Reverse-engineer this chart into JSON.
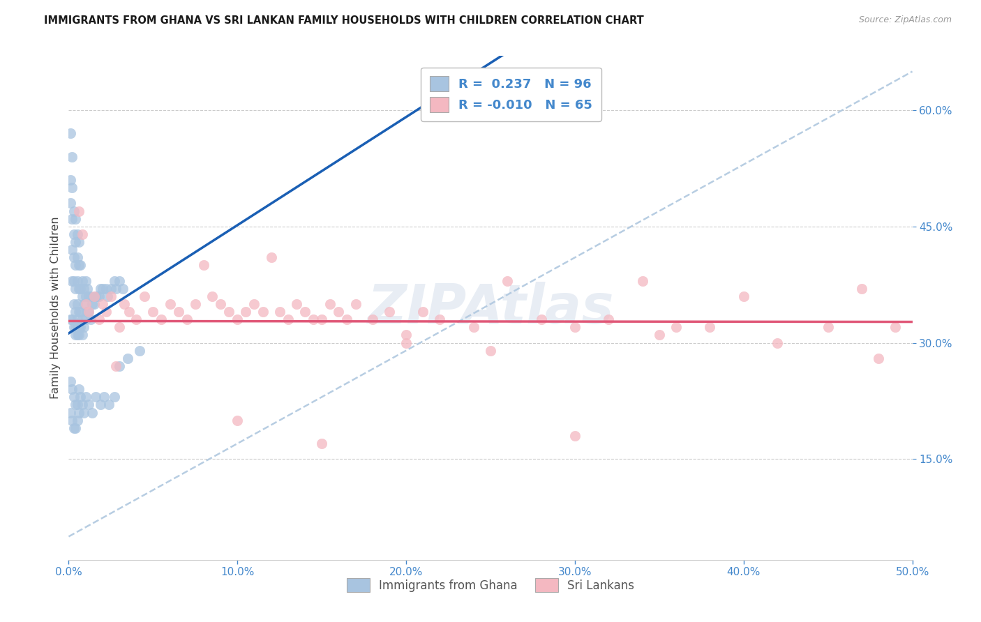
{
  "title": "IMMIGRANTS FROM GHANA VS SRI LANKAN FAMILY HOUSEHOLDS WITH CHILDREN CORRELATION CHART",
  "source": "Source: ZipAtlas.com",
  "ylabel": "Family Households with Children",
  "xmin": 0.0,
  "xmax": 0.5,
  "ymin": 0.02,
  "ymax": 0.67,
  "ghana_R": 0.237,
  "ghana_N": 96,
  "srilanka_R": -0.01,
  "srilanka_N": 65,
  "ghana_color": "#a8c4e0",
  "srilanka_color": "#f4b8c1",
  "ghana_trend_color": "#1a5fb4",
  "ghana_dashed_color": "#b0c8df",
  "srilanka_trend_color": "#e05878",
  "watermark": "ZIPAtlas",
  "legend_label1": "Immigrants from Ghana",
  "legend_label2": "Sri Lankans",
  "tick_color": "#4488cc",
  "grid_color": "#cccccc",
  "ytick_vals": [
    0.15,
    0.3,
    0.45,
    0.6
  ],
  "ytick_labels": [
    "15.0%",
    "30.0%",
    "45.0%",
    "60.0%"
  ],
  "xtick_vals": [
    0.0,
    0.1,
    0.2,
    0.3,
    0.4,
    0.5
  ],
  "xtick_labels": [
    "0.0%",
    "10.0%",
    "20.0%",
    "30.0%",
    "40.0%",
    "50.0%"
  ],
  "ghana_x": [
    0.001,
    0.001,
    0.001,
    0.001,
    0.002,
    0.002,
    0.002,
    0.002,
    0.002,
    0.002,
    0.003,
    0.003,
    0.003,
    0.003,
    0.003,
    0.003,
    0.004,
    0.004,
    0.004,
    0.004,
    0.004,
    0.004,
    0.004,
    0.005,
    0.005,
    0.005,
    0.005,
    0.005,
    0.005,
    0.005,
    0.006,
    0.006,
    0.006,
    0.006,
    0.006,
    0.006,
    0.007,
    0.007,
    0.007,
    0.007,
    0.008,
    0.008,
    0.008,
    0.008,
    0.009,
    0.009,
    0.009,
    0.01,
    0.01,
    0.01,
    0.011,
    0.011,
    0.012,
    0.012,
    0.013,
    0.013,
    0.014,
    0.015,
    0.016,
    0.017,
    0.018,
    0.019,
    0.02,
    0.022,
    0.023,
    0.025,
    0.027,
    0.028,
    0.03,
    0.032,
    0.001,
    0.001,
    0.002,
    0.002,
    0.003,
    0.003,
    0.004,
    0.004,
    0.005,
    0.005,
    0.006,
    0.006,
    0.007,
    0.008,
    0.009,
    0.01,
    0.012,
    0.014,
    0.016,
    0.019,
    0.021,
    0.024,
    0.027,
    0.03,
    0.035,
    0.042
  ],
  "ghana_y": [
    0.57,
    0.51,
    0.48,
    0.33,
    0.54,
    0.5,
    0.46,
    0.42,
    0.38,
    0.33,
    0.47,
    0.44,
    0.41,
    0.38,
    0.35,
    0.32,
    0.46,
    0.43,
    0.4,
    0.37,
    0.34,
    0.31,
    0.32,
    0.44,
    0.41,
    0.38,
    0.35,
    0.33,
    0.32,
    0.31,
    0.43,
    0.4,
    0.37,
    0.34,
    0.32,
    0.31,
    0.4,
    0.37,
    0.34,
    0.32,
    0.38,
    0.36,
    0.33,
    0.31,
    0.37,
    0.35,
    0.32,
    0.38,
    0.36,
    0.33,
    0.37,
    0.34,
    0.36,
    0.34,
    0.36,
    0.33,
    0.35,
    0.35,
    0.36,
    0.36,
    0.36,
    0.37,
    0.37,
    0.37,
    0.36,
    0.37,
    0.38,
    0.37,
    0.38,
    0.37,
    0.25,
    0.21,
    0.24,
    0.2,
    0.23,
    0.19,
    0.22,
    0.19,
    0.22,
    0.2,
    0.24,
    0.21,
    0.23,
    0.22,
    0.21,
    0.23,
    0.22,
    0.21,
    0.23,
    0.22,
    0.23,
    0.22,
    0.23,
    0.27,
    0.28,
    0.29
  ],
  "srilanka_x": [
    0.006,
    0.008,
    0.01,
    0.012,
    0.015,
    0.018,
    0.02,
    0.022,
    0.025,
    0.028,
    0.03,
    0.033,
    0.036,
    0.04,
    0.045,
    0.05,
    0.055,
    0.06,
    0.065,
    0.07,
    0.075,
    0.08,
    0.085,
    0.09,
    0.095,
    0.1,
    0.105,
    0.11,
    0.115,
    0.12,
    0.125,
    0.13,
    0.135,
    0.14,
    0.145,
    0.15,
    0.155,
    0.16,
    0.165,
    0.17,
    0.18,
    0.19,
    0.2,
    0.21,
    0.22,
    0.24,
    0.26,
    0.28,
    0.3,
    0.32,
    0.34,
    0.36,
    0.38,
    0.4,
    0.42,
    0.45,
    0.47,
    0.49,
    0.2,
    0.3,
    0.1,
    0.15,
    0.25,
    0.35,
    0.48
  ],
  "srilanka_y": [
    0.47,
    0.44,
    0.35,
    0.34,
    0.36,
    0.33,
    0.35,
    0.34,
    0.36,
    0.27,
    0.32,
    0.35,
    0.34,
    0.33,
    0.36,
    0.34,
    0.33,
    0.35,
    0.34,
    0.33,
    0.35,
    0.4,
    0.36,
    0.35,
    0.34,
    0.33,
    0.34,
    0.35,
    0.34,
    0.41,
    0.34,
    0.33,
    0.35,
    0.34,
    0.33,
    0.33,
    0.35,
    0.34,
    0.33,
    0.35,
    0.33,
    0.34,
    0.31,
    0.34,
    0.33,
    0.32,
    0.38,
    0.33,
    0.32,
    0.33,
    0.38,
    0.32,
    0.32,
    0.36,
    0.3,
    0.32,
    0.37,
    0.32,
    0.3,
    0.18,
    0.2,
    0.17,
    0.29,
    0.31,
    0.28
  ]
}
